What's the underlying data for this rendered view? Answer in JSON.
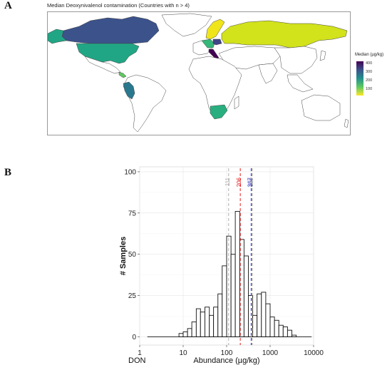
{
  "panels": {
    "a_label": "A",
    "b_label": "B"
  },
  "map": {
    "title": "Median Deoxynivalenol contamination (Countries with n > 4)",
    "legend_title": "Median (µg/kg)",
    "legend_ticks": [
      "400",
      "300",
      "200",
      "100"
    ],
    "colors": {
      "ocean": "#ffffff",
      "land_default": "#ffffff",
      "border": "#444444",
      "canada": "#3b528b",
      "usa": "#21a685",
      "russia": "#d2e21b",
      "scandinavia": "#f0e51a",
      "central_europe": "#35b779",
      "poland": "#404688",
      "italy": "#440154",
      "south_africa": "#29af7f",
      "peru": "#2a788e",
      "central_america": "#5ec962"
    }
  },
  "chart_data": {
    "type": "bar",
    "xlabel": "Abundance (µg/kg)",
    "ylabel": "# Samples",
    "corner_label": "DON",
    "x_scale": "log10",
    "xlim": [
      1,
      10000
    ],
    "ylim": [
      0,
      100
    ],
    "x_ticks": [
      {
        "value": 1,
        "label": "1"
      },
      {
        "value": 10,
        "label": "10"
      },
      {
        "value": 100,
        "label": "100"
      },
      {
        "value": 1000,
        "label": "1000"
      },
      {
        "value": 10000,
        "label": "10000"
      }
    ],
    "y_ticks": [
      {
        "value": 0,
        "label": "0"
      },
      {
        "value": 25,
        "label": "25"
      },
      {
        "value": 50,
        "label": "50"
      },
      {
        "value": 75,
        "label": "75"
      },
      {
        "value": 100,
        "label": "100"
      }
    ],
    "grid": true,
    "bins": [
      {
        "lo": 8,
        "hi": 10,
        "count": 2
      },
      {
        "lo": 10,
        "hi": 12.6,
        "count": 3
      },
      {
        "lo": 12.6,
        "hi": 15.8,
        "count": 5
      },
      {
        "lo": 15.8,
        "hi": 20,
        "count": 9
      },
      {
        "lo": 20,
        "hi": 25,
        "count": 17
      },
      {
        "lo": 25,
        "hi": 31.6,
        "count": 15
      },
      {
        "lo": 31.6,
        "hi": 40,
        "count": 18
      },
      {
        "lo": 40,
        "hi": 50,
        "count": 13
      },
      {
        "lo": 50,
        "hi": 63,
        "count": 18
      },
      {
        "lo": 63,
        "hi": 79,
        "count": 26
      },
      {
        "lo": 79,
        "hi": 100,
        "count": 43
      },
      {
        "lo": 100,
        "hi": 126,
        "count": 61
      },
      {
        "lo": 126,
        "hi": 158,
        "count": 50
      },
      {
        "lo": 158,
        "hi": 200,
        "count": 76
      },
      {
        "lo": 200,
        "hi": 251,
        "count": 59
      },
      {
        "lo": 251,
        "hi": 316,
        "count": 49
      },
      {
        "lo": 316,
        "hi": 398,
        "count": 25
      },
      {
        "lo": 398,
        "hi": 501,
        "count": 13
      },
      {
        "lo": 501,
        "hi": 631,
        "count": 26
      },
      {
        "lo": 631,
        "hi": 794,
        "count": 27
      },
      {
        "lo": 794,
        "hi": 1000,
        "count": 20
      },
      {
        "lo": 1000,
        "hi": 1259,
        "count": 12
      },
      {
        "lo": 1259,
        "hi": 1585,
        "count": 10
      },
      {
        "lo": 1585,
        "hi": 1995,
        "count": 7
      },
      {
        "lo": 1995,
        "hi": 2512,
        "count": 6
      },
      {
        "lo": 2512,
        "hi": 3162,
        "count": 4
      },
      {
        "lo": 3162,
        "hi": 3981,
        "count": 1
      }
    ],
    "baseline_range": [
      1.5,
      9000
    ],
    "reference_lines": [
      {
        "value": 111,
        "label": "111",
        "color": "#b0b0b0"
      },
      {
        "value": 206,
        "label": "206",
        "color": "#e41a1c"
      },
      {
        "value": 367,
        "label": "367",
        "color": "#2222dd"
      },
      {
        "value": 389,
        "label": "389",
        "color": "#999999"
      }
    ]
  }
}
